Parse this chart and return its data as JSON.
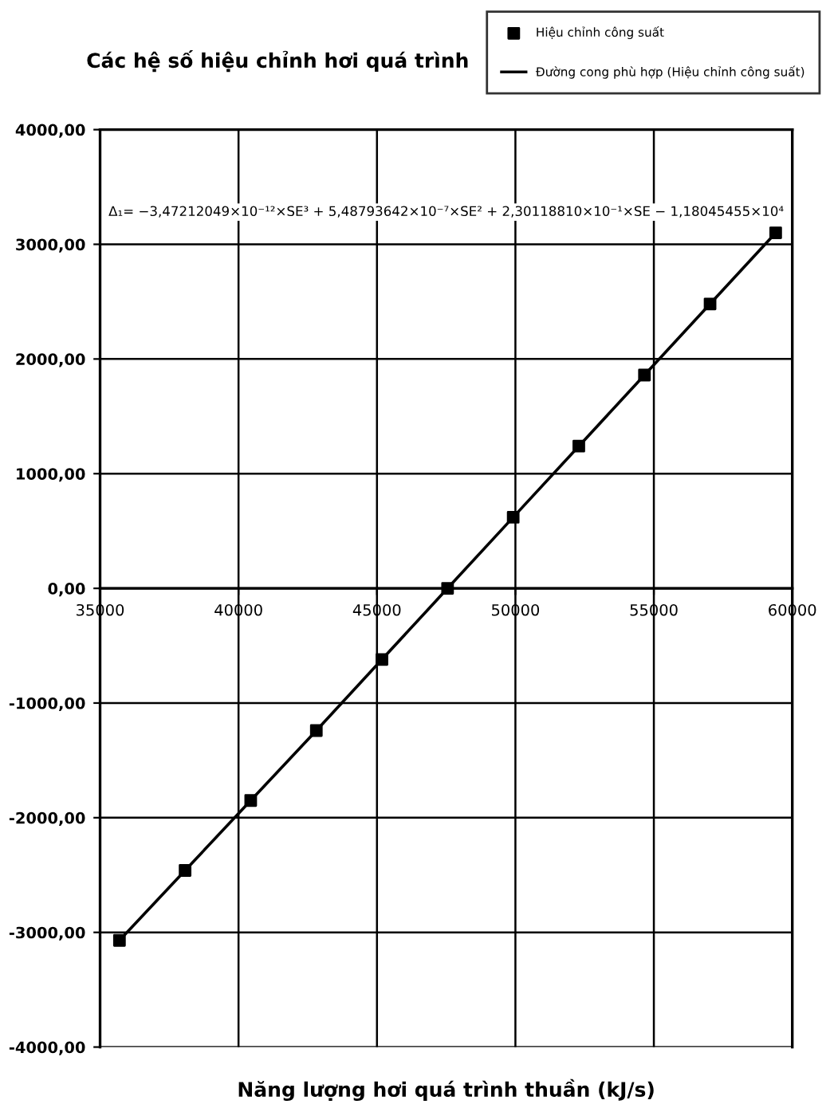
{
  "chart_data": {
    "type": "scatter",
    "title": "Các hệ số hiệu chỉnh hơi quá trình",
    "xlabel": "Năng lượng hơi quá trình thuần (kJ/s)",
    "annotations": [
      "Δ₁= −3,47212049×10⁻¹²×SE³ + 5,48793642×10⁻⁷×SE² + 2,30118810×10⁻¹×SE − 1,18045455×10⁴"
    ],
    "x": [
      35700,
      38070,
      40440,
      42810,
      45180,
      47550,
      49920,
      52290,
      54660,
      57030,
      59400
    ],
    "series": [
      {
        "name": "Hiệu chỉnh công suất",
        "color": "#000000",
        "marker": "square",
        "values": [
          -3070,
          -2460,
          -1850,
          -1240,
          -620,
          0,
          620,
          1240,
          1860,
          2480,
          3100
        ]
      },
      {
        "name": "Đường cong phù hợp (Hiệu chỉnh công suất)",
        "type": "line",
        "color": "#000000",
        "marker": "none",
        "line_style": "solid",
        "values": [
          -3070,
          -2460,
          -1850,
          -1240,
          -620,
          0,
          620,
          1240,
          1860,
          2480,
          3100
        ]
      }
    ],
    "xlim": [
      35000,
      60000
    ],
    "xticks": [
      35000,
      40000,
      45000,
      50000,
      55000,
      60000
    ],
    "ylim": [
      -4000,
      4000
    ],
    "yticks": [
      {
        "value": -4000,
        "label": "-4000,00"
      },
      {
        "value": -3000,
        "label": "-3000,00"
      },
      {
        "value": -2000,
        "label": "-2000,00"
      },
      {
        "value": -1000,
        "label": "-1000,00"
      },
      {
        "value": 0,
        "label": "0,00"
      },
      {
        "value": 1000,
        "label": "1000,00"
      },
      {
        "value": 2000,
        "label": "2000,00"
      },
      {
        "value": 3000,
        "label": "3000,00"
      },
      {
        "value": 4000,
        "label": "4000,00"
      }
    ],
    "grid": true,
    "legend": "top right"
  }
}
